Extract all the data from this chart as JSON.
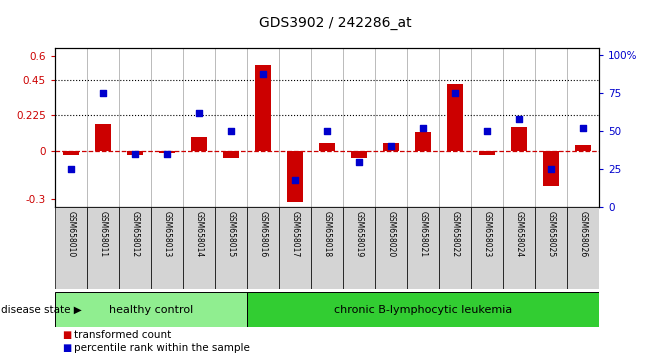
{
  "title": "GDS3902 / 242286_at",
  "samples": [
    "GSM658010",
    "GSM658011",
    "GSM658012",
    "GSM658013",
    "GSM658014",
    "GSM658015",
    "GSM658016",
    "GSM658017",
    "GSM658018",
    "GSM658019",
    "GSM658020",
    "GSM658021",
    "GSM658022",
    "GSM658023",
    "GSM658024",
    "GSM658025",
    "GSM658026"
  ],
  "bar_values": [
    -0.02,
    0.17,
    -0.02,
    -0.01,
    0.09,
    -0.04,
    0.54,
    -0.32,
    0.05,
    -0.04,
    0.05,
    0.12,
    0.42,
    -0.02,
    0.15,
    -0.22,
    0.04
  ],
  "dot_values_pct": [
    25,
    75,
    35,
    35,
    62,
    50,
    88,
    18,
    50,
    30,
    40,
    52,
    75,
    50,
    58,
    25,
    52
  ],
  "bar_color": "#cc0000",
  "dot_color": "#0000cc",
  "healthy_count": 6,
  "group_labels": [
    "healthy control",
    "chronic B-lymphocytic leukemia"
  ],
  "healthy_color": "#90ee90",
  "leukemia_color": "#32cd32",
  "disease_state_label": "disease state",
  "legend_bar": "transformed count",
  "legend_dot": "percentile rank within the sample",
  "ylim_left": [
    -0.35,
    0.65
  ],
  "ylim_right": [
    0,
    105
  ],
  "yticks_left": [
    -0.3,
    0.0,
    0.225,
    0.45,
    0.6
  ],
  "ytick_labels_left": [
    "-0.3",
    "0",
    "0.225",
    "0.45",
    "0.6"
  ],
  "yticks_right": [
    0,
    25,
    50,
    75,
    100
  ],
  "ytick_labels_right": [
    "0",
    "25",
    "50",
    "75",
    "100%"
  ],
  "hlines": [
    0.225,
    0.45
  ]
}
